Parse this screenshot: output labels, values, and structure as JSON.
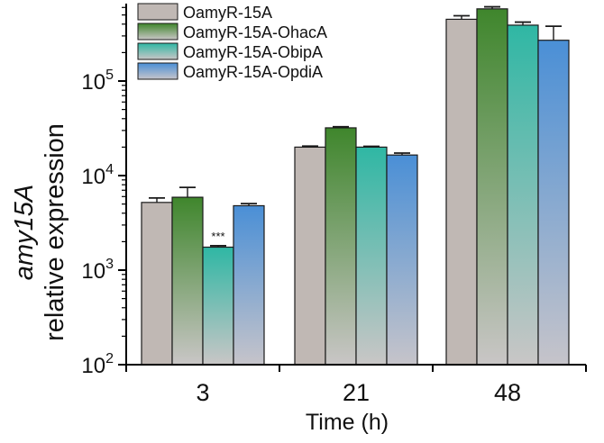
{
  "chart_data": {
    "type": "bar",
    "title": "",
    "xlabel": "Time (h)",
    "ylabel_line1": "amy15A",
    "ylabel_line2": "relative expression",
    "yscale": "log",
    "ylim": [
      100,
      1000000
    ],
    "yticks": [
      {
        "value": 100,
        "base": "10",
        "exp": "2"
      },
      {
        "value": 1000,
        "base": "10",
        "exp": "3"
      },
      {
        "value": 10000,
        "base": "10",
        "exp": "4"
      },
      {
        "value": 100000,
        "base": "10",
        "exp": "5"
      }
    ],
    "categories": [
      "3",
      "21",
      "48"
    ],
    "series": [
      {
        "name": "OamyR-15A",
        "values": [
          5200,
          20000,
          450000
        ],
        "errors": [
          600,
          500,
          40000
        ],
        "color_top": "#c0b8b4",
        "color_bottom": "#c0b8b4"
      },
      {
        "name": "OamyR-15A-OhacA",
        "values": [
          5900,
          32000,
          580000
        ],
        "errors": [
          1600,
          800,
          30000
        ],
        "color_top": "#3f862c",
        "color_bottom": "#c9c6c6"
      },
      {
        "name": "OamyR-15A-ObipA",
        "values": [
          1750,
          20000,
          390000
        ],
        "errors": [
          60,
          400,
          30000
        ],
        "color_top": "#2fb7a4",
        "color_bottom": "#c9c6c6"
      },
      {
        "name": "OamyR-15A-OpdiA",
        "values": [
          4800,
          16500,
          270000
        ],
        "errors": [
          250,
          800,
          110000
        ],
        "color_top": "#4a8fd6",
        "color_bottom": "#c6c4ca"
      }
    ],
    "annotations": [
      {
        "text": "***",
        "category": "3",
        "series": "OamyR-15A-ObipA"
      }
    ],
    "legend_position": "top-left",
    "grid": false
  }
}
